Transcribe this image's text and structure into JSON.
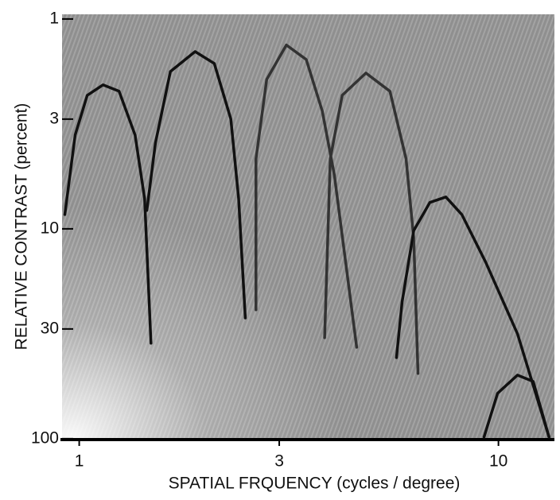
{
  "chart_data": {
    "type": "line",
    "xlabel": "SPATIAL FRQUENCY   (cycles / degree)",
    "ylabel": "RELATIVE CONTRAST  (percent)",
    "xscale": "log",
    "yscale": "log",
    "yinverted": true,
    "xlim": [
      0.91,
      13.6
    ],
    "ylim": [
      0.95,
      101
    ],
    "xticks": [
      1,
      3,
      10
    ],
    "yticks": [
      1,
      3,
      10,
      30,
      100
    ],
    "series": [
      {
        "color": "#111111",
        "x": [
          0.924,
          0.978,
          1.045,
          1.14,
          1.245,
          1.359,
          1.432,
          1.483
        ],
        "values": [
          8.55,
          3.57,
          2.31,
          2.06,
          2.21,
          3.57,
          7.18,
          35.1
        ]
      },
      {
        "color": "#111111",
        "x": [
          1.45,
          1.52,
          1.65,
          1.89,
          2.1,
          2.3,
          2.4,
          2.49
        ],
        "values": [
          8.17,
          3.9,
          1.78,
          1.43,
          1.63,
          3.0,
          7.18,
          26.6
        ]
      },
      {
        "color": "#333333",
        "x": [
          2.64,
          2.64,
          2.8,
          3.12,
          3.48,
          3.8,
          4.06,
          4.59
        ],
        "values": [
          24.3,
          4.64,
          1.94,
          1.33,
          1.56,
          2.75,
          5.53,
          36.7
        ]
      },
      {
        "color": "#333333",
        "x": [
          3.85,
          3.97,
          4.24,
          4.83,
          5.51,
          6.02,
          6.28,
          6.43
        ],
        "values": [
          33.0,
          4.64,
          2.31,
          1.81,
          2.21,
          4.64,
          11.1,
          48.9
        ]
      },
      {
        "color": "#111111",
        "x": [
          5.71,
          5.89,
          6.28,
          6.86,
          7.49,
          8.18,
          9.32,
          11.1,
          13.2
        ],
        "values": [
          41.1,
          22.3,
          10.2,
          7.49,
          7.05,
          8.55,
          14.4,
          31.6,
          98.2
        ]
      },
      {
        "color": "#111111",
        "x": [
          9.24,
          9.95,
          11.1,
          12.1,
          13.2
        ],
        "values": [
          98.2,
          60.8,
          49.8,
          53.4,
          98.2
        ]
      }
    ]
  }
}
